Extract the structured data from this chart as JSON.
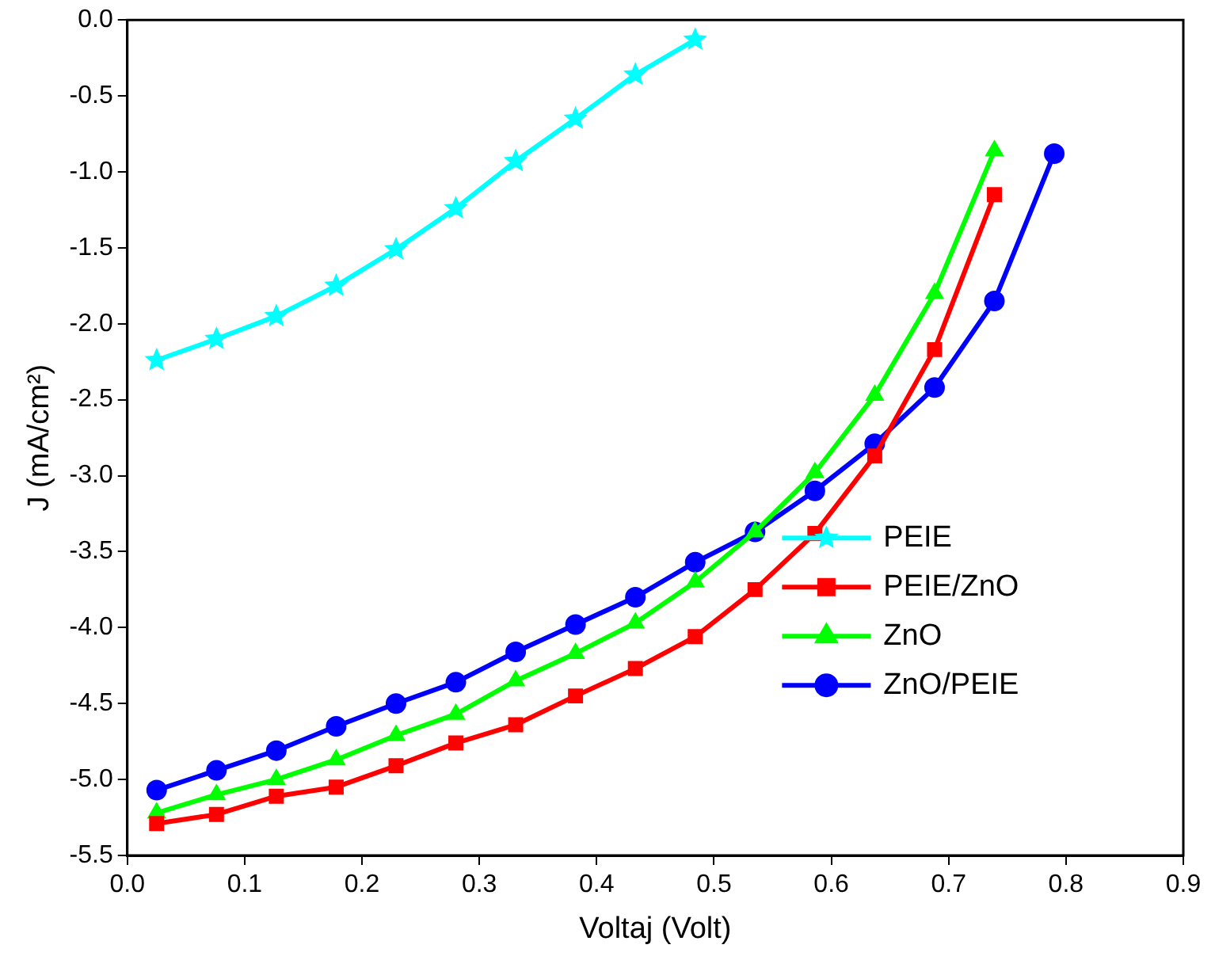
{
  "chart_data": {
    "type": "line",
    "xlabel": "Voltaj (Volt)",
    "ylabel": "J (mA/cm²)",
    "xlim": [
      0,
      0.9
    ],
    "xticks": [
      {
        "value": 0,
        "label": "0.0"
      },
      0.1,
      0.2,
      0.3,
      0.4,
      0.5,
      0.6,
      0.7,
      0.8,
      0.9
    ],
    "ylim": [
      -5.5,
      0
    ],
    "yticks": [
      {
        "value": -5.5,
        "label": "-5.5"
      },
      {
        "value": -5,
        "label": "-5.0"
      },
      {
        "value": -4.5,
        "label": "-4.5"
      },
      {
        "value": -4,
        "label": "-4.0"
      },
      {
        "value": -3.5,
        "label": "-3.5"
      },
      {
        "value": -3,
        "label": "-3.0"
      },
      {
        "value": -2.5,
        "label": "-2.5"
      },
      {
        "value": -2,
        "label": "-2.0"
      },
      {
        "value": -1.5,
        "label": "-1.5"
      },
      {
        "value": -1,
        "label": "-1.0"
      },
      {
        "value": -0.5,
        "label": "-0.5"
      },
      {
        "value": 0,
        "label": "0.0"
      }
    ],
    "grid": false,
    "legend": "right",
    "line_style": "solid",
    "series": [
      {
        "name": "PEIE",
        "color": "#00ffff",
        "marker": "star",
        "x": [
          0.025,
          0.076,
          0.127,
          0.178,
          0.229,
          0.28,
          0.331,
          0.382,
          0.433,
          0.484
        ],
        "values": [
          -2.24,
          -2.1,
          -1.95,
          -1.75,
          -1.51,
          -1.24,
          -0.93,
          -0.65,
          -0.36,
          -0.13
        ]
      },
      {
        "name": "PEIE/ZnO",
        "color": "#ff0000",
        "marker": "square",
        "x": [
          0.025,
          0.076,
          0.127,
          0.178,
          0.229,
          0.28,
          0.331,
          0.382,
          0.433,
          0.484,
          0.535,
          0.586,
          0.637,
          0.688,
          0.739
        ],
        "values": [
          -5.29,
          -5.23,
          -5.11,
          -5.05,
          -4.91,
          -4.76,
          -4.64,
          -4.45,
          -4.27,
          -4.06,
          -3.75,
          -3.38,
          -2.87,
          -2.17,
          -1.15
        ]
      },
      {
        "name": "ZnO",
        "color": "#00ff00",
        "marker": "triangle",
        "x": [
          0.025,
          0.076,
          0.127,
          0.178,
          0.229,
          0.28,
          0.331,
          0.382,
          0.433,
          0.484,
          0.535,
          0.586,
          0.637,
          0.688,
          0.739
        ],
        "values": [
          -5.22,
          -5.1,
          -5.0,
          -4.87,
          -4.71,
          -4.57,
          -4.35,
          -4.17,
          -3.97,
          -3.7,
          -3.37,
          -2.98,
          -2.47,
          -1.8,
          -0.86
        ]
      },
      {
        "name": "ZnO/PEIE",
        "color": "#0000ff",
        "marker": "circle",
        "x": [
          0.025,
          0.076,
          0.127,
          0.178,
          0.229,
          0.28,
          0.331,
          0.382,
          0.433,
          0.484,
          0.535,
          0.586,
          0.637,
          0.688,
          0.739,
          0.79
        ],
        "values": [
          -5.07,
          -4.94,
          -4.81,
          -4.65,
          -4.5,
          -4.36,
          -4.16,
          -3.98,
          -3.8,
          -3.57,
          -3.37,
          -3.1,
          -2.79,
          -2.42,
          -1.85,
          -0.88
        ]
      }
    ]
  }
}
